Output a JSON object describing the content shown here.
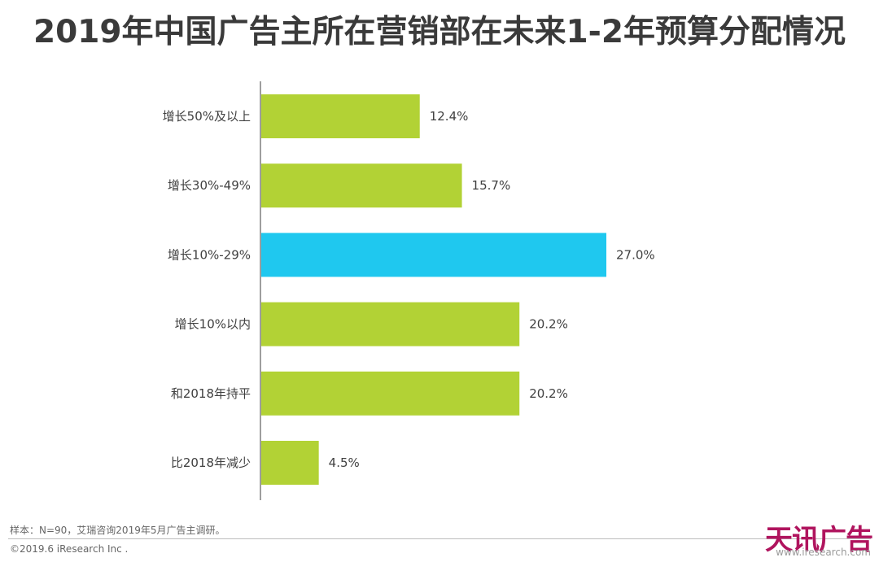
{
  "chart_data": {
    "type": "bar",
    "orientation": "horizontal",
    "title": "2019年中国广告主所在营销部在未来1-2年预算分配情况",
    "categories": [
      "增长50%及以上",
      "增长30%-49%",
      "增长10%-29%",
      "增长10%以内",
      "和2018年持平",
      "比2018年减少"
    ],
    "values": [
      12.4,
      15.7,
      27.0,
      20.2,
      20.2,
      4.5
    ],
    "value_labels": [
      "12.4%",
      "15.7%",
      "27.0%",
      "20.2%",
      "20.2%",
      "4.5%"
    ],
    "unit": "%",
    "bar_colors": [
      "#b2d235",
      "#b2d235",
      "#1fc8ef",
      "#b2d235",
      "#b2d235",
      "#b2d235"
    ],
    "highlight_index": 2,
    "xlim": [
      0,
      27.0
    ],
    "grid": false,
    "legend": "none"
  },
  "footer": {
    "source": "样本：N=90，艾瑞咨询2019年5月广告主调研。",
    "copyright": "©2019.6 iResearch Inc ."
  },
  "watermark": {
    "main": "天讯广告",
    "sub": "www.iresearch.com"
  },
  "colors": {
    "bar": "#b2d235",
    "highlight": "#1fc8ef",
    "axis": "#7f7f7f",
    "watermark": "#b0145e"
  }
}
